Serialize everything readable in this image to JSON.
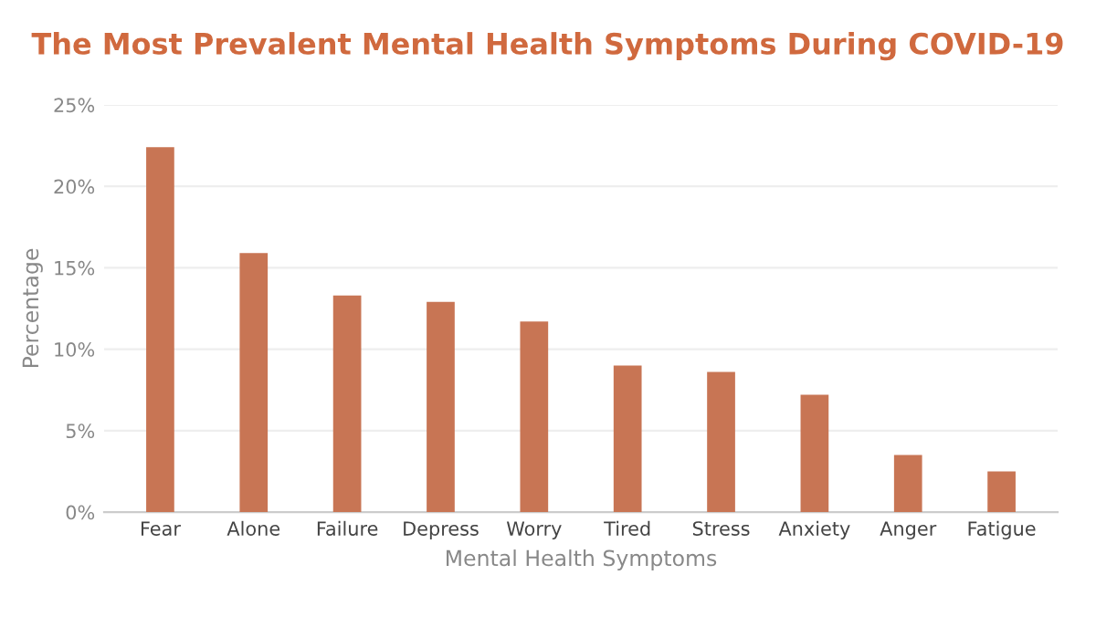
{
  "chart_data": {
    "type": "bar",
    "title": "The Most Prevalent Mental Health Symptoms During COVID-19",
    "xlabel": "Mental Health Symptoms",
    "ylabel": "Percentage",
    "categories": [
      "Fear",
      "Alone",
      "Failure",
      "Depress",
      "Worry",
      "Tired",
      "Stress",
      "Anxiety",
      "Anger",
      "Fatigue"
    ],
    "values": [
      22.4,
      15.9,
      13.3,
      12.9,
      11.7,
      9.0,
      8.6,
      7.2,
      3.5,
      2.5
    ],
    "color": "#c87554",
    "ylim": [
      0,
      25
    ],
    "yticks": [
      {
        "value": 0,
        "label": "0%"
      },
      {
        "value": 5,
        "label": "5%"
      },
      {
        "value": 10,
        "label": "10%"
      },
      {
        "value": 15,
        "label": "15%"
      },
      {
        "value": 20,
        "label": "20%"
      },
      {
        "value": 25,
        "label": "25%"
      }
    ],
    "grid": "y"
  }
}
